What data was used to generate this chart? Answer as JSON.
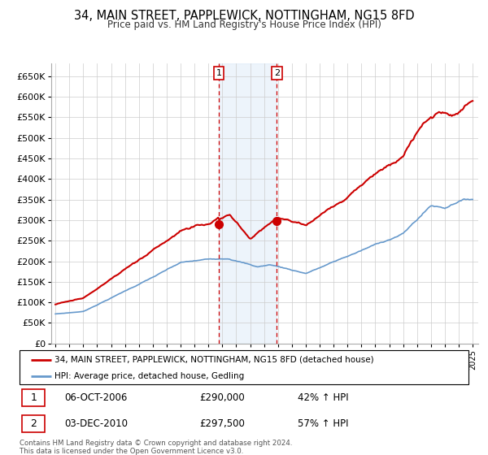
{
  "title": "34, MAIN STREET, PAPPLEWICK, NOTTINGHAM, NG15 8FD",
  "subtitle": "Price paid vs. HM Land Registry's House Price Index (HPI)",
  "legend_line1": "34, MAIN STREET, PAPPLEWICK, NOTTINGHAM, NG15 8FD (detached house)",
  "legend_line2": "HPI: Average price, detached house, Gedling",
  "red_color": "#cc0000",
  "blue_color": "#6699cc",
  "marker_color": "#cc0000",
  "shade_color": "#cce0f5",
  "transaction1_date": "06-OCT-2006",
  "transaction1_price": "£290,000",
  "transaction1_hpi": "42% ↑ HPI",
  "transaction2_date": "03-DEC-2010",
  "transaction2_price": "£297,500",
  "transaction2_hpi": "57% ↑ HPI",
  "footer": "Contains HM Land Registry data © Crown copyright and database right 2024.\nThis data is licensed under the Open Government Licence v3.0.",
  "ylim": [
    0,
    680000
  ],
  "yticks": [
    0,
    50000,
    100000,
    150000,
    200000,
    250000,
    300000,
    350000,
    400000,
    450000,
    500000,
    550000,
    600000,
    650000
  ],
  "xlim_start": 1994.7,
  "xlim_end": 2025.4,
  "t1_x": 2006.75,
  "t1_y": 290000,
  "t2_x": 2010.92,
  "t2_y": 297500
}
